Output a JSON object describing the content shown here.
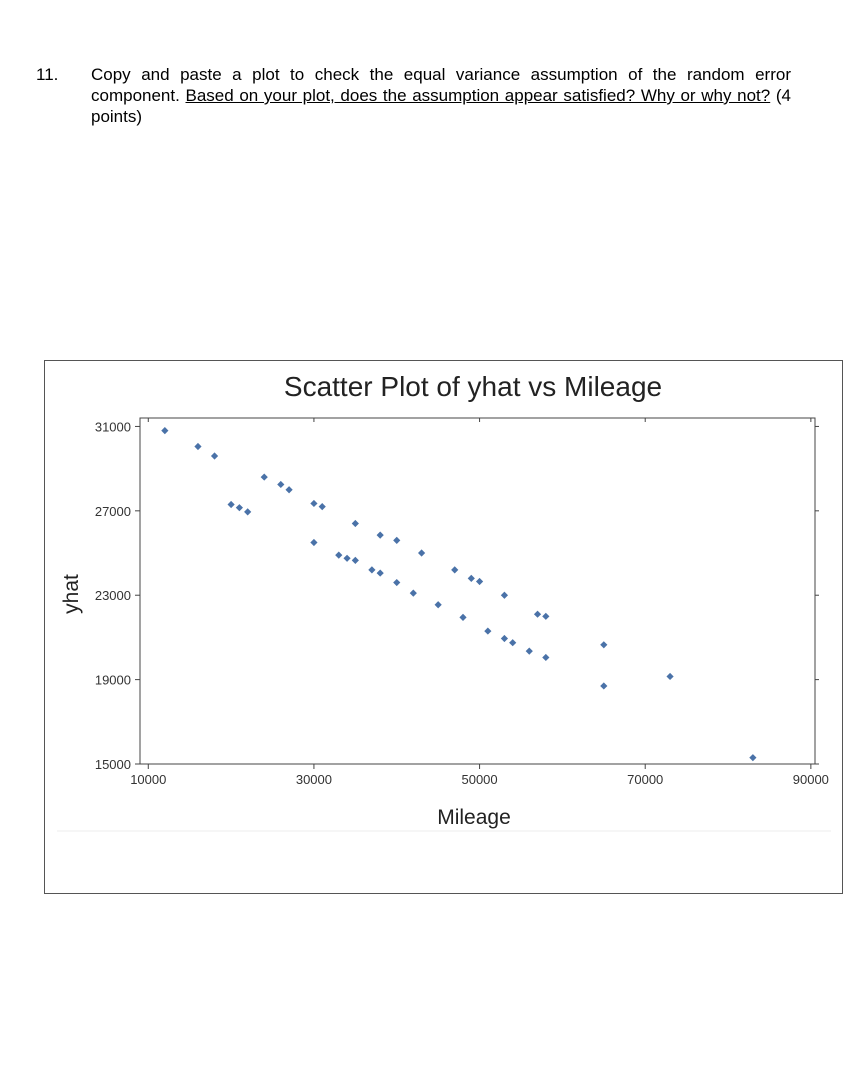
{
  "question": {
    "number": "11.",
    "text_plain": "Copy and paste a plot to check the equal variance assumption of the random error component.",
    "text_underlined": "Based on your plot, does the assumption appear satisfied? Why or why not?",
    "points": "(4 points)"
  },
  "chart_data": {
    "type": "scatter",
    "title": "Scatter Plot of yhat vs Mileage",
    "xlabel": "Mileage",
    "ylabel": "yhat",
    "xlim": [
      9000,
      90500
    ],
    "ylim": [
      15000,
      31400
    ],
    "xticks": [
      10000,
      30000,
      50000,
      70000,
      90000
    ],
    "yticks": [
      15000,
      19000,
      23000,
      27000,
      31000
    ],
    "xtick_labels": [
      "10000",
      "30000",
      "50000",
      "70000",
      "90000"
    ],
    "ytick_labels": [
      "15000",
      "19000",
      "23000",
      "27000",
      "31000"
    ],
    "marker_color": "#4a72a8",
    "grid": false,
    "points": [
      [
        12000,
        30800
      ],
      [
        16000,
        30050
      ],
      [
        18000,
        29600
      ],
      [
        24000,
        28600
      ],
      [
        26000,
        28250
      ],
      [
        27000,
        28000
      ],
      [
        20000,
        27300
      ],
      [
        21000,
        27150
      ],
      [
        22000,
        26950
      ],
      [
        30000,
        27350
      ],
      [
        31000,
        27200
      ],
      [
        35000,
        26400
      ],
      [
        38000,
        25850
      ],
      [
        40000,
        25600
      ],
      [
        30000,
        25500
      ],
      [
        33000,
        24900
      ],
      [
        34000,
        24750
      ],
      [
        35000,
        24650
      ],
      [
        37000,
        24200
      ],
      [
        38000,
        24050
      ],
      [
        40000,
        23600
      ],
      [
        42000,
        23100
      ],
      [
        43000,
        25000
      ],
      [
        45000,
        22550
      ],
      [
        47000,
        24200
      ],
      [
        49000,
        23800
      ],
      [
        50000,
        23650
      ],
      [
        48000,
        21950
      ],
      [
        53000,
        23000
      ],
      [
        51000,
        21300
      ],
      [
        53000,
        20950
      ],
      [
        54000,
        20750
      ],
      [
        56000,
        20350
      ],
      [
        58000,
        20050
      ],
      [
        57000,
        22100
      ],
      [
        58000,
        22000
      ],
      [
        65000,
        20650
      ],
      [
        65000,
        18700
      ],
      [
        73000,
        19150
      ],
      [
        83000,
        15300
      ]
    ]
  }
}
